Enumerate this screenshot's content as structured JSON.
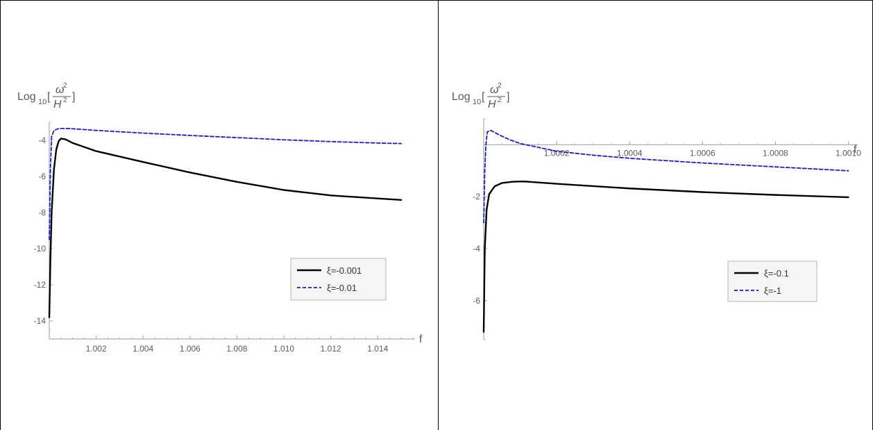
{
  "chart_data": [
    {
      "type": "line",
      "xlabel": "f",
      "ylabel": {
        "prefix": "Log",
        "sub": "10",
        "num": "ω",
        "num_sup": "2",
        "den": "H",
        "den_sup": "2"
      },
      "xlim": [
        1.0,
        1.0155
      ],
      "ylim": [
        -15,
        -3
      ],
      "x_ticks": [
        1.002,
        1.004,
        1.006,
        1.008,
        1.01,
        1.012,
        1.014
      ],
      "x_tick_labels": [
        "1.002",
        "1.004",
        "1.006",
        "1.008",
        "1.010",
        "1.012",
        "1.014"
      ],
      "y_ticks": [
        -14,
        -12,
        -10,
        -8,
        -6,
        -4
      ],
      "y_tick_labels": [
        "-14",
        "-12",
        "-10",
        "-8",
        "-6",
        "-4"
      ],
      "legend": "bottom-right",
      "series": [
        {
          "name": "ξ=-0.001",
          "color": "#000000",
          "dash": "solid",
          "points": [
            [
              1.0,
              -13.8
            ],
            [
              1.00005,
              -10.5
            ],
            [
              1.0001,
              -8.0
            ],
            [
              1.0002,
              -5.6
            ],
            [
              1.0003,
              -4.5
            ],
            [
              1.0004,
              -4.05
            ],
            [
              1.0005,
              -3.9
            ],
            [
              1.0007,
              -3.95
            ],
            [
              1.001,
              -4.15
            ],
            [
              1.002,
              -4.6
            ],
            [
              1.004,
              -5.2
            ],
            [
              1.006,
              -5.78
            ],
            [
              1.008,
              -6.3
            ],
            [
              1.01,
              -6.75
            ],
            [
              1.012,
              -7.05
            ],
            [
              1.014,
              -7.22
            ],
            [
              1.015,
              -7.3
            ]
          ]
        },
        {
          "name": "ξ=-0.01",
          "color": "#1a1ad6",
          "dash": "dashed",
          "points": [
            [
              1.0,
              -9.5
            ],
            [
              1.00005,
              -5.5
            ],
            [
              1.0001,
              -3.8
            ],
            [
              1.0002,
              -3.45
            ],
            [
              1.0004,
              -3.35
            ],
            [
              1.0006,
              -3.34
            ],
            [
              1.001,
              -3.36
            ],
            [
              1.002,
              -3.45
            ],
            [
              1.004,
              -3.6
            ],
            [
              1.006,
              -3.73
            ],
            [
              1.008,
              -3.85
            ],
            [
              1.01,
              -3.97
            ],
            [
              1.012,
              -4.07
            ],
            [
              1.014,
              -4.15
            ],
            [
              1.015,
              -4.18
            ]
          ]
        }
      ]
    },
    {
      "type": "line",
      "xlabel": "f",
      "ylabel": {
        "prefix": "Log",
        "sub": "10",
        "num": "ω",
        "num_sup": "2",
        "den": "H",
        "den_sup": "2"
      },
      "xlim": [
        1.0,
        1.00102
      ],
      "ylim": [
        -7.5,
        1
      ],
      "x_ticks": [
        1.0002,
        1.0004,
        1.0006,
        1.0008,
        1.001
      ],
      "x_tick_labels": [
        "1.0002",
        "1.0004",
        "1.0006",
        "1.0008",
        "1.0010"
      ],
      "y_ticks": [
        -6,
        -4,
        -2
      ],
      "y_tick_labels": [
        "-6",
        "-4",
        "-2"
      ],
      "legend": "bottom-right",
      "series": [
        {
          "name": "ξ=-0.1",
          "color": "#000000",
          "dash": "solid",
          "points": [
            [
              1.0,
              -7.2
            ],
            [
              1.000003,
              -4.0
            ],
            [
              1.000008,
              -2.5
            ],
            [
              1.000015,
              -1.9
            ],
            [
              1.00003,
              -1.6
            ],
            [
              1.00005,
              -1.47
            ],
            [
              1.00008,
              -1.42
            ],
            [
              1.00011,
              -1.41
            ],
            [
              1.0002,
              -1.5
            ],
            [
              1.0004,
              -1.68
            ],
            [
              1.0006,
              -1.82
            ],
            [
              1.0008,
              -1.93
            ],
            [
              1.001,
              -2.02
            ]
          ]
        },
        {
          "name": "ξ=-1",
          "color": "#1a1ad6",
          "dash": "dashed",
          "points": [
            [
              1.0,
              -3.0
            ],
            [
              1.000003,
              -1.0
            ],
            [
              1.000006,
              0.0
            ],
            [
              1.00001,
              0.5
            ],
            [
              1.00002,
              0.55
            ],
            [
              1.00004,
              0.4
            ],
            [
              1.00007,
              0.2
            ],
            [
              1.0001,
              0.05
            ],
            [
              1.00015,
              -0.1
            ],
            [
              1.0002,
              -0.25
            ],
            [
              1.0003,
              -0.4
            ],
            [
              1.0004,
              -0.52
            ],
            [
              1.0006,
              -0.7
            ],
            [
              1.0008,
              -0.85
            ],
            [
              1.001,
              -1.0
            ]
          ]
        }
      ]
    }
  ]
}
